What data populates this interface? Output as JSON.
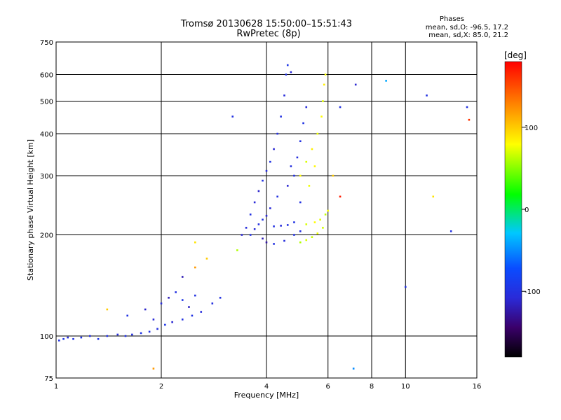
{
  "chart_data": {
    "type": "scatter",
    "title": "Tromsø 20130628 15:50:00–15:51:43",
    "subtitle": "RwPretec (8p)",
    "xlabel": "Frequency [MHz]",
    "ylabel": "Stationary phase Virtual Height [km]",
    "x_scale": "log",
    "y_scale": "log",
    "xlim": [
      1,
      16
    ],
    "ylim": [
      75,
      750
    ],
    "x_ticks": [
      1,
      2,
      4,
      6,
      8,
      10,
      16
    ],
    "y_ticks": [
      75,
      100,
      200,
      300,
      400,
      500,
      600,
      750
    ],
    "grid": true,
    "stats": {
      "heading": "Phases",
      "line_o": "mean, sd,O: -96.5, 17.2",
      "line_x": "mean, sd,X: 85.0, 21.2"
    },
    "colorbar": {
      "label": "[deg]",
      "ticks": [
        100,
        0,
        -100
      ],
      "range": [
        -180,
        180
      ]
    },
    "series": [
      {
        "points": [
          [
            1.02,
            97,
            -100
          ],
          [
            1.05,
            98,
            -95
          ],
          [
            1.08,
            99,
            -105
          ],
          [
            1.12,
            98,
            -100
          ],
          [
            1.18,
            99,
            -98
          ],
          [
            1.25,
            100,
            -102
          ],
          [
            1.32,
            98,
            -96
          ],
          [
            1.4,
            100,
            -100
          ],
          [
            1.5,
            101,
            -104
          ],
          [
            1.58,
            100,
            -99
          ],
          [
            1.65,
            101,
            -101
          ],
          [
            1.75,
            102,
            -97
          ],
          [
            1.85,
            103,
            -100
          ],
          [
            1.95,
            105,
            -102
          ],
          [
            2.05,
            108,
            -95
          ],
          [
            2.15,
            110,
            -110
          ],
          [
            2.3,
            112,
            -100
          ],
          [
            2.45,
            115,
            -98
          ],
          [
            2.6,
            118,
            -105
          ],
          [
            2.8,
            125,
            -102
          ],
          [
            2.95,
            130,
            -100
          ],
          [
            1.6,
            115,
            -98
          ],
          [
            1.8,
            120,
            -112
          ],
          [
            2.0,
            125,
            -105
          ],
          [
            2.1,
            130,
            -118
          ],
          [
            2.2,
            135,
            -100
          ],
          [
            2.3,
            128,
            -95
          ],
          [
            2.5,
            132,
            -100
          ],
          [
            1.9,
            112,
            -108
          ],
          [
            2.4,
            122,
            -115
          ],
          [
            3.4,
            200,
            -110
          ],
          [
            3.5,
            210,
            -105
          ],
          [
            3.6,
            230,
            -100
          ],
          [
            3.7,
            250,
            -108
          ],
          [
            3.8,
            270,
            -112
          ],
          [
            3.9,
            290,
            -100
          ],
          [
            4.0,
            310,
            -105
          ],
          [
            4.1,
            330,
            -98
          ],
          [
            4.2,
            360,
            -110
          ],
          [
            4.3,
            400,
            -102
          ],
          [
            4.4,
            450,
            -100
          ],
          [
            4.5,
            520,
            -106
          ],
          [
            4.55,
            600,
            -100
          ],
          [
            4.6,
            640,
            -95
          ],
          [
            4.7,
            610,
            -108
          ],
          [
            3.6,
            200,
            -100
          ],
          [
            3.7,
            208,
            -106
          ],
          [
            3.8,
            215,
            -102
          ],
          [
            3.9,
            222,
            -98
          ],
          [
            4.0,
            228,
            -110
          ],
          [
            4.2,
            212,
            -100
          ],
          [
            4.4,
            213,
            -105
          ],
          [
            4.6,
            214,
            -100
          ],
          [
            4.8,
            218,
            -98
          ],
          [
            3.9,
            195,
            -120
          ],
          [
            4.0,
            190,
            -125
          ],
          [
            4.2,
            188,
            -100
          ],
          [
            4.5,
            192,
            -104
          ],
          [
            4.8,
            200,
            -100
          ],
          [
            5.0,
            205,
            -102
          ],
          [
            4.8,
            300,
            -100
          ],
          [
            4.9,
            340,
            -104
          ],
          [
            5.0,
            380,
            -100
          ],
          [
            5.1,
            430,
            -98
          ],
          [
            5.2,
            480,
            -106
          ],
          [
            5.0,
            250,
            -100
          ],
          [
            4.6,
            280,
            -110
          ],
          [
            4.7,
            320,
            -102
          ],
          [
            4.3,
            260,
            -100
          ],
          [
            4.1,
            240,
            -108
          ],
          [
            5.0,
            190,
            60
          ],
          [
            5.2,
            193,
            70
          ],
          [
            5.4,
            197,
            65
          ],
          [
            5.6,
            202,
            75
          ],
          [
            5.8,
            210,
            68
          ],
          [
            5.2,
            215,
            70
          ],
          [
            5.5,
            218,
            80
          ],
          [
            5.7,
            222,
            72
          ],
          [
            5.9,
            230,
            65
          ],
          [
            6.0,
            236,
            78
          ],
          [
            5.0,
            300,
            80
          ],
          [
            5.2,
            330,
            70
          ],
          [
            5.4,
            360,
            85
          ],
          [
            5.6,
            400,
            75
          ],
          [
            5.75,
            450,
            80
          ],
          [
            5.8,
            500,
            72
          ],
          [
            5.85,
            560,
            85
          ],
          [
            5.9,
            600,
            78
          ],
          [
            5.3,
            280,
            75
          ],
          [
            5.5,
            320,
            82
          ],
          [
            6.5,
            480,
            -100
          ],
          [
            7.2,
            560,
            -110
          ],
          [
            8.8,
            575,
            -40
          ],
          [
            10.0,
            140,
            -100
          ],
          [
            7.1,
            80,
            -50
          ],
          [
            11.5,
            520,
            -100
          ],
          [
            15.0,
            480,
            -100
          ],
          [
            15.2,
            440,
            160
          ],
          [
            13.5,
            205,
            -100
          ],
          [
            12.0,
            260,
            90
          ],
          [
            3.2,
            450,
            -100
          ],
          [
            2.5,
            160,
            120
          ],
          [
            2.7,
            170,
            100
          ],
          [
            2.3,
            150,
            -120
          ],
          [
            6.2,
            300,
            100
          ],
          [
            6.5,
            260,
            170
          ],
          [
            3.3,
            180,
            60
          ],
          [
            1.4,
            120,
            100
          ],
          [
            1.9,
            80,
            120
          ],
          [
            2.5,
            190,
            90
          ]
        ]
      }
    ]
  }
}
